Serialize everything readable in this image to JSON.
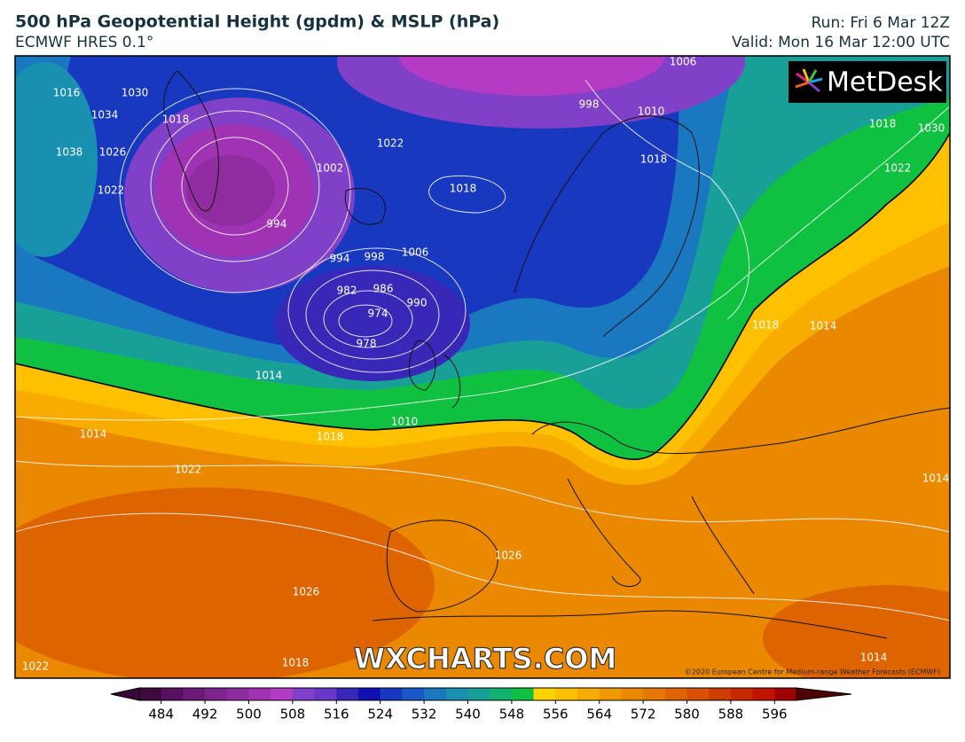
{
  "header": {
    "title": "500 hPa Geopotential Height (gpdm) & MSLP (hPa)",
    "subtitle": "ECMWF HRES 0.1°",
    "run": "Run: Fri 6 Mar 12Z",
    "valid": "Valid: Mon 16 Mar 12:00 UTC"
  },
  "logo": "MetDesk",
  "watermark": "WXCHARTS.COM",
  "copyright": "©2020 European Centre for Medium-range Weather Forecasts (ECMWF)",
  "map": {
    "isobar_labels": [
      1016,
      1034,
      1030,
      1018,
      1026,
      1038,
      1022,
      994,
      1002,
      1022,
      1018,
      1006,
      998,
      994,
      982,
      986,
      990,
      974,
      978,
      1014,
      1010,
      1018,
      1014,
      1022,
      1026,
      1026,
      1018,
      1022,
      1010,
      1018,
      1006,
      998,
      1018,
      1014,
      1014,
      1018,
      1030,
      1022,
      1014
    ]
  },
  "colorbar": {
    "lim": [
      480,
      600
    ],
    "ticks": [
      484,
      492,
      500,
      508,
      516,
      524,
      532,
      540,
      548,
      556,
      564,
      572,
      580,
      588,
      596
    ],
    "colors": [
      "#3c0a3c",
      "#5a1060",
      "#6e1a78",
      "#7e248c",
      "#8e2ca0",
      "#a032b4",
      "#b43cc4",
      "#8040c8",
      "#6838c8",
      "#3828b8",
      "#1010b0",
      "#1838c0",
      "#1a58c8",
      "#1a78c0",
      "#1a90b0",
      "#18a098",
      "#14b070",
      "#10c040",
      "#ffd400",
      "#ffc000",
      "#f8ac00",
      "#f09800",
      "#ea8800",
      "#e47800",
      "#de6400",
      "#d85000",
      "#d03c00",
      "#c82800",
      "#c01400",
      "#a00000"
    ],
    "under": "#3a0538",
    "over": "#500000"
  }
}
